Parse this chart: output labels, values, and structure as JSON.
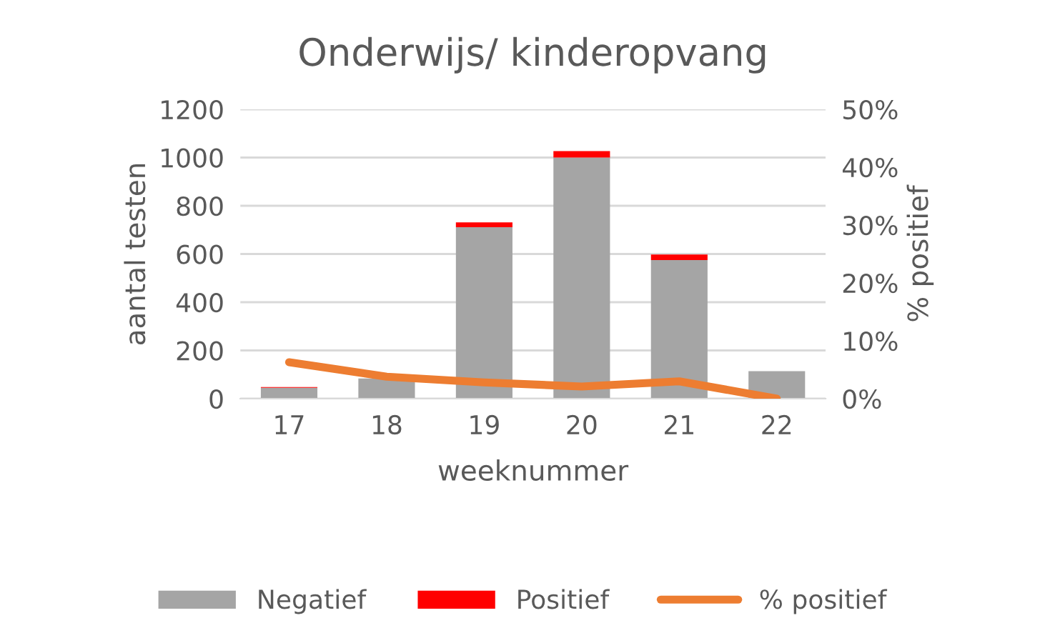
{
  "chart_data": {
    "type": "bar",
    "title": "Onderwijs/ kinderopvang",
    "xlabel": "weeknummer",
    "ylabel": "aantal testen",
    "y2label": "% positief",
    "categories": [
      "17",
      "18",
      "19",
      "20",
      "21",
      "22"
    ],
    "stacked": true,
    "series": [
      {
        "name": "Negatief",
        "color": "#a5a5a5",
        "values": [
          45,
          84,
          711,
          1000,
          575,
          114
        ]
      },
      {
        "name": "Positief",
        "color": "#ff0000",
        "values": [
          3,
          null,
          20,
          27,
          23,
          0
        ]
      },
      {
        "name": "% positief",
        "type": "line",
        "axis": "y2",
        "color": "#ed7d31",
        "values": [
          6.3,
          3.8,
          2.8,
          2.1,
          3.0,
          0
        ]
      }
    ],
    "ylim": [
      0,
      1200
    ],
    "yticks": [
      0,
      200,
      400,
      600,
      800,
      1000,
      1200
    ],
    "y2lim": [
      0,
      50
    ],
    "y2ticks": [
      {
        "value": 0,
        "label": "0%"
      },
      {
        "value": 10,
        "label": "10%"
      },
      {
        "value": 20,
        "label": "20%"
      },
      {
        "value": 30,
        "label": "30%"
      },
      {
        "value": 40,
        "label": "40%"
      },
      {
        "value": 50,
        "label": "50%"
      }
    ],
    "grid": "y",
    "legend": "bottom"
  }
}
